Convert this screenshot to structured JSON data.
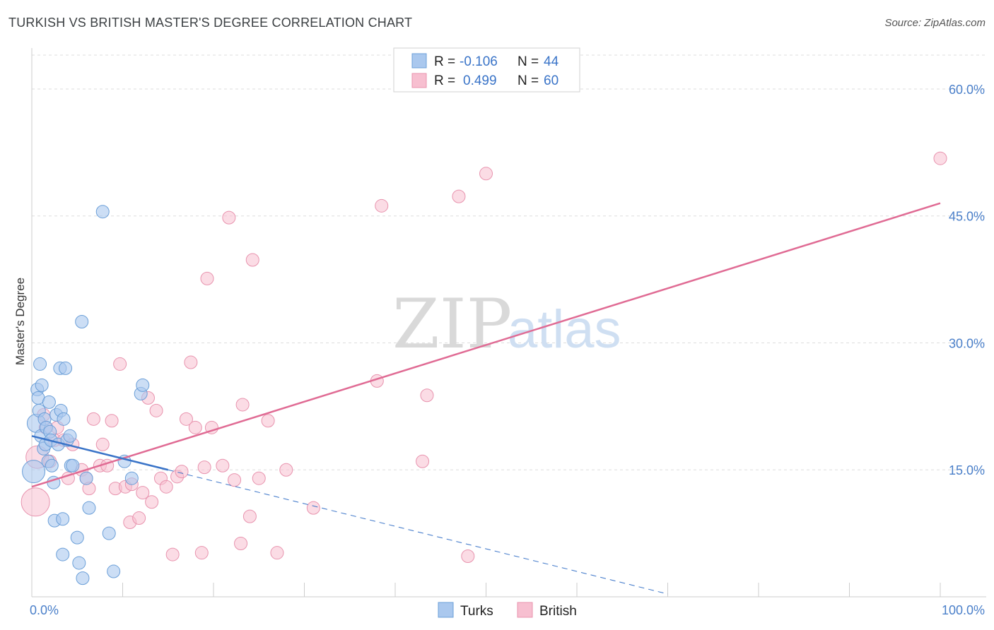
{
  "title": "TURKISH VS BRITISH MASTER'S DEGREE CORRELATION CHART",
  "source": "Source: ZipAtlas.com",
  "watermark": {
    "zip": "ZIP",
    "atlas": "atlas"
  },
  "colors": {
    "turks_fill": "#aac8ee",
    "turks_stroke": "#6b9fd8",
    "turks_line": "#3a74c8",
    "british_fill": "#f7bfd0",
    "british_stroke": "#e893ae",
    "british_line": "#e06b94",
    "tick_text": "#4a7fc9",
    "grid": "#dddddd"
  },
  "legend": {
    "row1": {
      "r_label": "R = ",
      "r_value": "-0.106",
      "n_label": "N = ",
      "n_value": "44"
    },
    "row2": {
      "r_label": "R = ",
      "r_value": "0.499",
      "n_label": "N = ",
      "n_value": "60"
    }
  },
  "chart_data": {
    "type": "scatter",
    "title": "TURKISH VS BRITISH MASTER'S DEGREE CORRELATION CHART",
    "xlabel": "",
    "ylabel": "Master's Degree",
    "xlim": [
      0,
      100
    ],
    "ylim": [
      0,
      60
    ],
    "x_tick_labels": [
      "0.0%",
      "100.0%"
    ],
    "y_ticks": [
      15,
      30,
      45,
      60
    ],
    "y_tick_labels": [
      "15.0%",
      "30.0%",
      "45.0%",
      "60.0%"
    ],
    "grid": true,
    "legend_position": "top-center",
    "series": [
      {
        "name": "Turks",
        "R": -0.106,
        "N": 44,
        "trend": {
          "x0": 0,
          "y0": 19.0,
          "x1": 15,
          "y1": 15.0,
          "dashed_to_x": 70
        },
        "points": [
          [
            0.2,
            14.8
          ],
          [
            0.5,
            20.5
          ],
          [
            0.6,
            24.5
          ],
          [
            0.7,
            23.5
          ],
          [
            0.8,
            22.0
          ],
          [
            0.9,
            27.5
          ],
          [
            1.0,
            19.0
          ],
          [
            1.1,
            25.0
          ],
          [
            1.3,
            17.5
          ],
          [
            1.4,
            21.0
          ],
          [
            1.5,
            18.0
          ],
          [
            1.6,
            20.0
          ],
          [
            1.8,
            16.0
          ],
          [
            1.9,
            23.0
          ],
          [
            2.0,
            19.5
          ],
          [
            2.1,
            18.5
          ],
          [
            2.2,
            15.5
          ],
          [
            2.4,
            13.5
          ],
          [
            2.5,
            9.0
          ],
          [
            2.7,
            21.5
          ],
          [
            2.9,
            18.0
          ],
          [
            3.1,
            27.0
          ],
          [
            3.2,
            22.0
          ],
          [
            3.4,
            9.2
          ],
          [
            3.5,
            21.0
          ],
          [
            3.7,
            27.0
          ],
          [
            3.9,
            18.5
          ],
          [
            4.2,
            19.0
          ],
          [
            4.3,
            15.5
          ],
          [
            4.5,
            15.5
          ],
          [
            5.0,
            7.0
          ],
          [
            5.2,
            4.0
          ],
          [
            5.5,
            32.5
          ],
          [
            5.6,
            2.2
          ],
          [
            6.0,
            14.0
          ],
          [
            6.3,
            10.5
          ],
          [
            3.4,
            5.0
          ],
          [
            8.5,
            7.5
          ],
          [
            9.0,
            3.0
          ],
          [
            7.8,
            45.5
          ],
          [
            10.2,
            16.0
          ],
          [
            11.0,
            14.0
          ],
          [
            12.0,
            24.0
          ],
          [
            12.2,
            25.0
          ]
        ]
      },
      {
        "name": "British",
        "R": 0.499,
        "N": 60,
        "trend": {
          "x0": 0,
          "y0": 13.0,
          "x1": 100,
          "y1": 46.5
        },
        "points": [
          [
            0.4,
            11.2
          ],
          [
            0.6,
            16.5
          ],
          [
            1.3,
            21.5
          ],
          [
            1.5,
            20.0
          ],
          [
            2.0,
            16.0
          ],
          [
            2.5,
            18.5
          ],
          [
            2.8,
            20.0
          ],
          [
            3.5,
            18.5
          ],
          [
            4.0,
            14.0
          ],
          [
            4.5,
            18.0
          ],
          [
            5.5,
            15.0
          ],
          [
            6.0,
            14.0
          ],
          [
            6.3,
            12.8
          ],
          [
            6.8,
            21.0
          ],
          [
            7.5,
            15.5
          ],
          [
            7.8,
            18.0
          ],
          [
            8.3,
            15.5
          ],
          [
            8.8,
            20.8
          ],
          [
            9.2,
            12.8
          ],
          [
            9.7,
            27.5
          ],
          [
            10.3,
            13.0
          ],
          [
            10.8,
            8.8
          ],
          [
            11.0,
            13.3
          ],
          [
            11.8,
            9.3
          ],
          [
            12.2,
            12.3
          ],
          [
            12.8,
            23.5
          ],
          [
            13.2,
            11.2
          ],
          [
            13.7,
            22.0
          ],
          [
            14.2,
            14.0
          ],
          [
            14.8,
            13.0
          ],
          [
            15.5,
            5.0
          ],
          [
            16.0,
            14.2
          ],
          [
            16.5,
            14.8
          ],
          [
            17.0,
            21.0
          ],
          [
            17.5,
            27.7
          ],
          [
            18.0,
            20.0
          ],
          [
            18.7,
            5.2
          ],
          [
            19.0,
            15.3
          ],
          [
            19.3,
            37.6
          ],
          [
            19.8,
            20.0
          ],
          [
            21.0,
            15.5
          ],
          [
            21.7,
            44.8
          ],
          [
            22.3,
            13.8
          ],
          [
            23.0,
            6.3
          ],
          [
            23.2,
            22.7
          ],
          [
            24.0,
            9.5
          ],
          [
            24.3,
            39.8
          ],
          [
            25.0,
            14.0
          ],
          [
            26.0,
            20.8
          ],
          [
            27.0,
            5.2
          ],
          [
            28.0,
            15.0
          ],
          [
            31.0,
            10.5
          ],
          [
            38.0,
            25.5
          ],
          [
            38.5,
            46.2
          ],
          [
            43.0,
            16.0
          ],
          [
            43.5,
            23.8
          ],
          [
            47.0,
            47.3
          ],
          [
            48.0,
            4.8
          ],
          [
            50.0,
            50.0
          ],
          [
            100.0,
            51.8
          ]
        ]
      }
    ]
  }
}
